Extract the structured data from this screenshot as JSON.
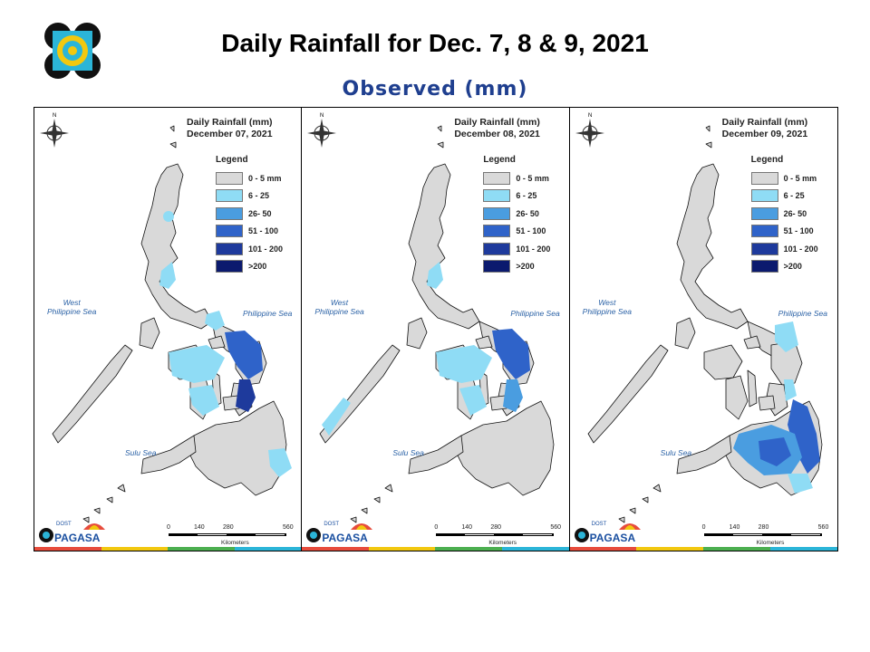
{
  "header": {
    "title": "Daily Rainfall for Dec. 7, 8 & 9, 2021",
    "subtitle": "Observed (mm)"
  },
  "legend": {
    "title": "Legend",
    "classes": [
      {
        "label": "0 - 5 mm",
        "color": "#d9d9d9"
      },
      {
        "label": "6 - 25",
        "color": "#8fdcf5"
      },
      {
        "label": "26- 50",
        "color": "#4a9de0"
      },
      {
        "label": "51 - 100",
        "color": "#2f63c9"
      },
      {
        "label": "101 - 200",
        "color": "#1e3a9c"
      },
      {
        "label": ">200",
        "color": "#0b1a6e"
      }
    ]
  },
  "sea_labels": {
    "west": "West\nPhilippine Sea",
    "east": "Philippine Sea",
    "sulu": "Sulu Sea"
  },
  "scale": {
    "ticks": [
      "0",
      "140",
      "280",
      "560"
    ],
    "unit": "Kilometers"
  },
  "brand": {
    "name": "PAGASA",
    "small": "DOST"
  },
  "panels": [
    {
      "title_line1": "Daily Rainfall (mm)",
      "title_line2": "December 07, 2021",
      "rain_regions": [
        {
          "region": "Bicol",
          "class": "51 - 100"
        },
        {
          "region": "Eastern Visayas",
          "class": "51 - 100"
        },
        {
          "region": "Central Luzon",
          "class": "6 - 25"
        },
        {
          "region": "Western Visayas",
          "class": "6 - 25"
        },
        {
          "region": "Eastern Mindanao",
          "class": "6 - 25"
        }
      ]
    },
    {
      "title_line1": "Daily Rainfall (mm)",
      "title_line2": "December 08, 2021",
      "rain_regions": [
        {
          "region": "Bicol",
          "class": "51 - 100"
        },
        {
          "region": "Eastern Visayas",
          "class": "26- 50"
        },
        {
          "region": "Central Luzon",
          "class": "6 - 25"
        },
        {
          "region": "Western Visayas",
          "class": "6 - 25"
        },
        {
          "region": "Palawan",
          "class": "6 - 25"
        }
      ]
    },
    {
      "title_line1": "Daily Rainfall (mm)",
      "title_line2": "December 09, 2021",
      "rain_regions": [
        {
          "region": "Eastern Visayas",
          "class": "6 - 25"
        },
        {
          "region": "Eastern Mindanao",
          "class": "51 - 100"
        },
        {
          "region": "Northern Mindanao",
          "class": "26- 50"
        }
      ]
    }
  ]
}
